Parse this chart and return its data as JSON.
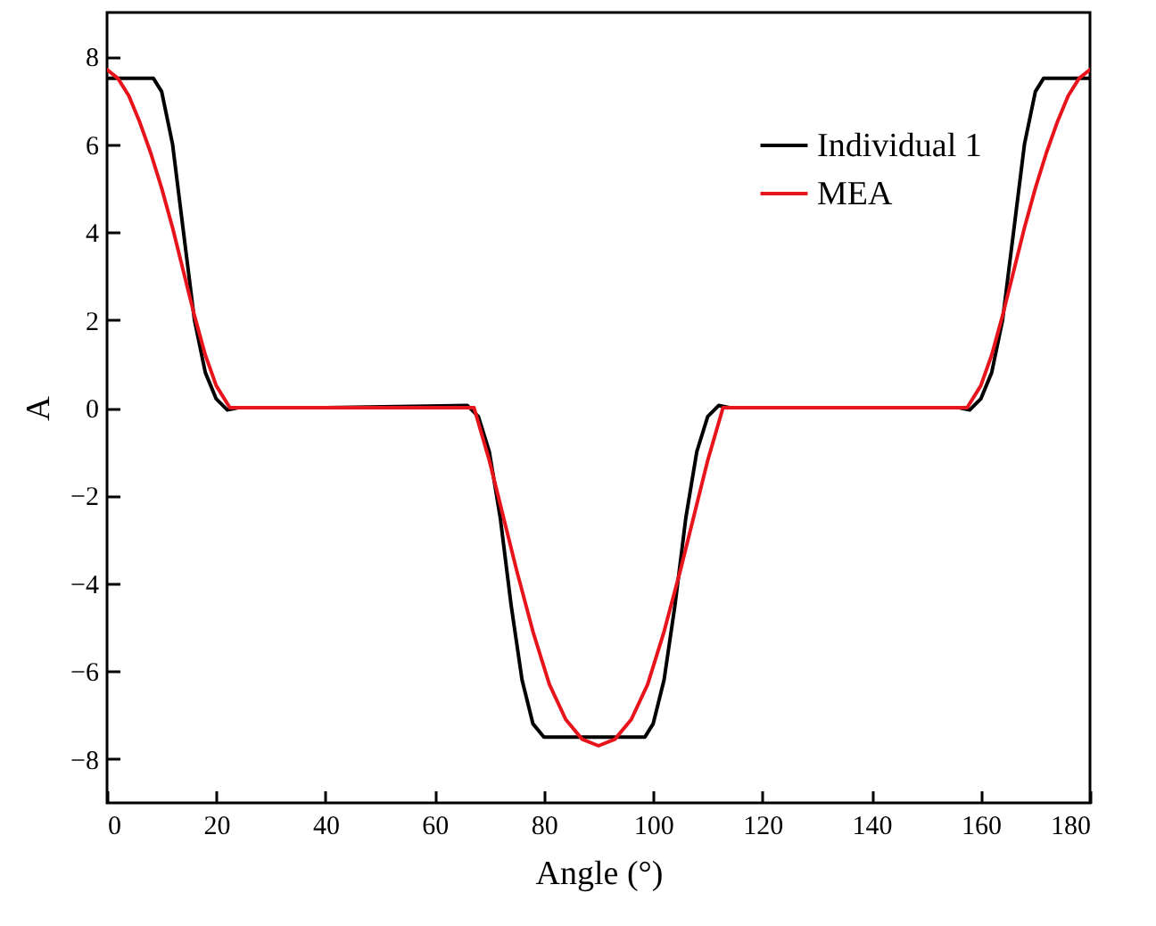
{
  "chart_data": {
    "type": "line",
    "xlabel": "Angle (°)",
    "ylabel": "A",
    "xlim": [
      0,
      180
    ],
    "xticks": [
      0,
      20,
      40,
      60,
      80,
      100,
      120,
      140,
      160,
      180
    ],
    "ylim": [
      -9,
      9
    ],
    "yticks": [
      -8,
      -6,
      -4,
      -2,
      0,
      2,
      4,
      6,
      8
    ],
    "grid": false,
    "legend": "top right",
    "marker": "none",
    "line_style": "solid",
    "series": [
      {
        "name": "Individual 1",
        "color": "#000000",
        "x": [
          0,
          8.5,
          10,
          12,
          14,
          16,
          18,
          20,
          22,
          24,
          40,
          66,
          68,
          70,
          72,
          74,
          76,
          78,
          80,
          81.5,
          90,
          98.5,
          100,
          102,
          104,
          106,
          108,
          110,
          112,
          114,
          140,
          156,
          158,
          160,
          162,
          164,
          166,
          168,
          170,
          171.5,
          180
        ],
        "values": [
          7.5,
          7.5,
          7.2,
          6.0,
          4.0,
          2.0,
          0.8,
          0.2,
          -0.05,
          0,
          0,
          0.05,
          -0.2,
          -1.0,
          -2.5,
          -4.5,
          -6.2,
          -7.2,
          -7.5,
          -7.5,
          -7.5,
          -7.5,
          -7.2,
          -6.2,
          -4.5,
          -2.5,
          -1.0,
          -0.2,
          0.05,
          0,
          0,
          0,
          -0.05,
          0.2,
          0.8,
          2.0,
          4.0,
          6.0,
          7.2,
          7.5,
          7.5
        ]
      },
      {
        "name": "MEA",
        "color": "#e8141b",
        "x": [
          0,
          2,
          4,
          6,
          8,
          10,
          12,
          14,
          16,
          18,
          20,
          22.5,
          40,
          67.2,
          70,
          72,
          75,
          78,
          81,
          84,
          87,
          90,
          93,
          96,
          99,
          102,
          105,
          108,
          110,
          112.8,
          140,
          157.5,
          160,
          162,
          164,
          166,
          168,
          170,
          172,
          174,
          176,
          178,
          180
        ],
        "values": [
          7.7,
          7.5,
          7.1,
          6.5,
          5.8,
          5.0,
          4.1,
          3.1,
          2.1,
          1.2,
          0.5,
          0,
          0,
          0,
          -1.2,
          -2.2,
          -3.7,
          -5.1,
          -6.3,
          -7.1,
          -7.55,
          -7.7,
          -7.55,
          -7.1,
          -6.3,
          -5.1,
          -3.7,
          -2.2,
          -1.2,
          0,
          0,
          0,
          0.5,
          1.2,
          2.1,
          3.1,
          4.1,
          5.0,
          5.8,
          6.5,
          7.1,
          7.5,
          7.7
        ]
      }
    ]
  }
}
